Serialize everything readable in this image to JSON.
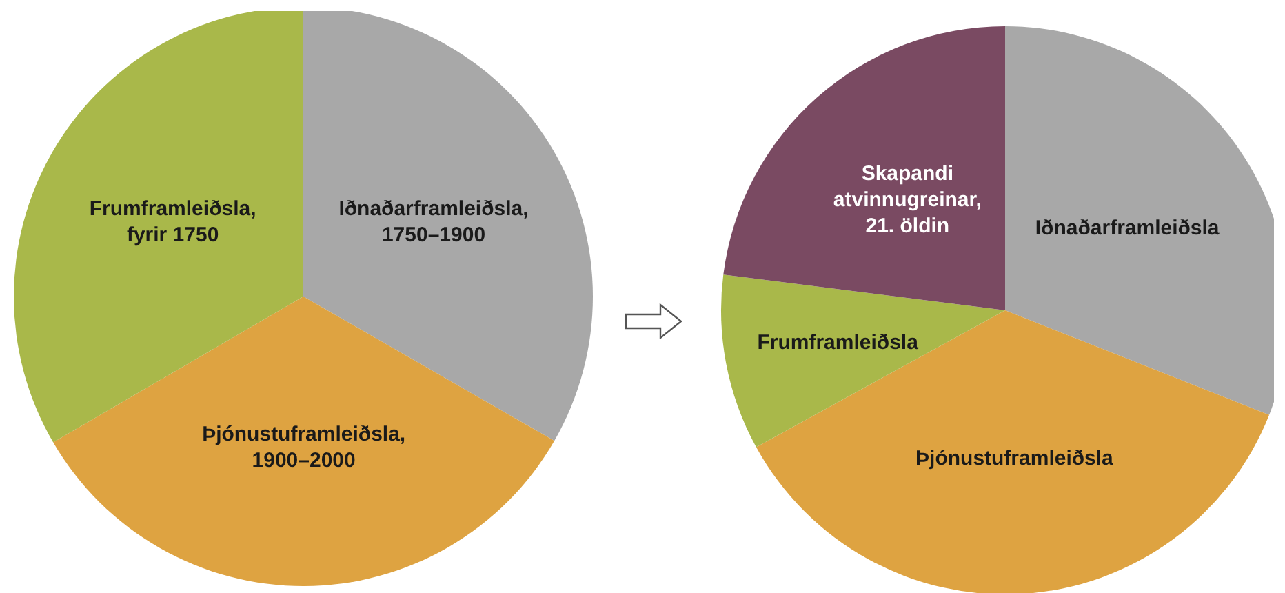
{
  "chart_data": [
    {
      "type": "pie",
      "categories": [
        "Iðnaðarframleiðsla,\n1750–1900",
        "Þjónustuframleiðsla,\n1900–2000",
        "Frumframleiðsla,\nfyrir 1750"
      ],
      "values": [
        33.3,
        33.3,
        33.4
      ],
      "colors": [
        "#a8a8a8",
        "#dea341",
        "#a9b84a"
      ]
    },
    {
      "type": "pie",
      "categories": [
        "Iðnaðarframleiðsla",
        "Þjónustuframleiðsla",
        "Frumframleiðsla",
        "Skapandi\natvinnugreinar,\n21. öldin"
      ],
      "values": [
        31,
        36,
        10,
        23
      ],
      "colors": [
        "#a8a8a8",
        "#dea341",
        "#a9b84a",
        "#7a4a62"
      ]
    }
  ]
}
